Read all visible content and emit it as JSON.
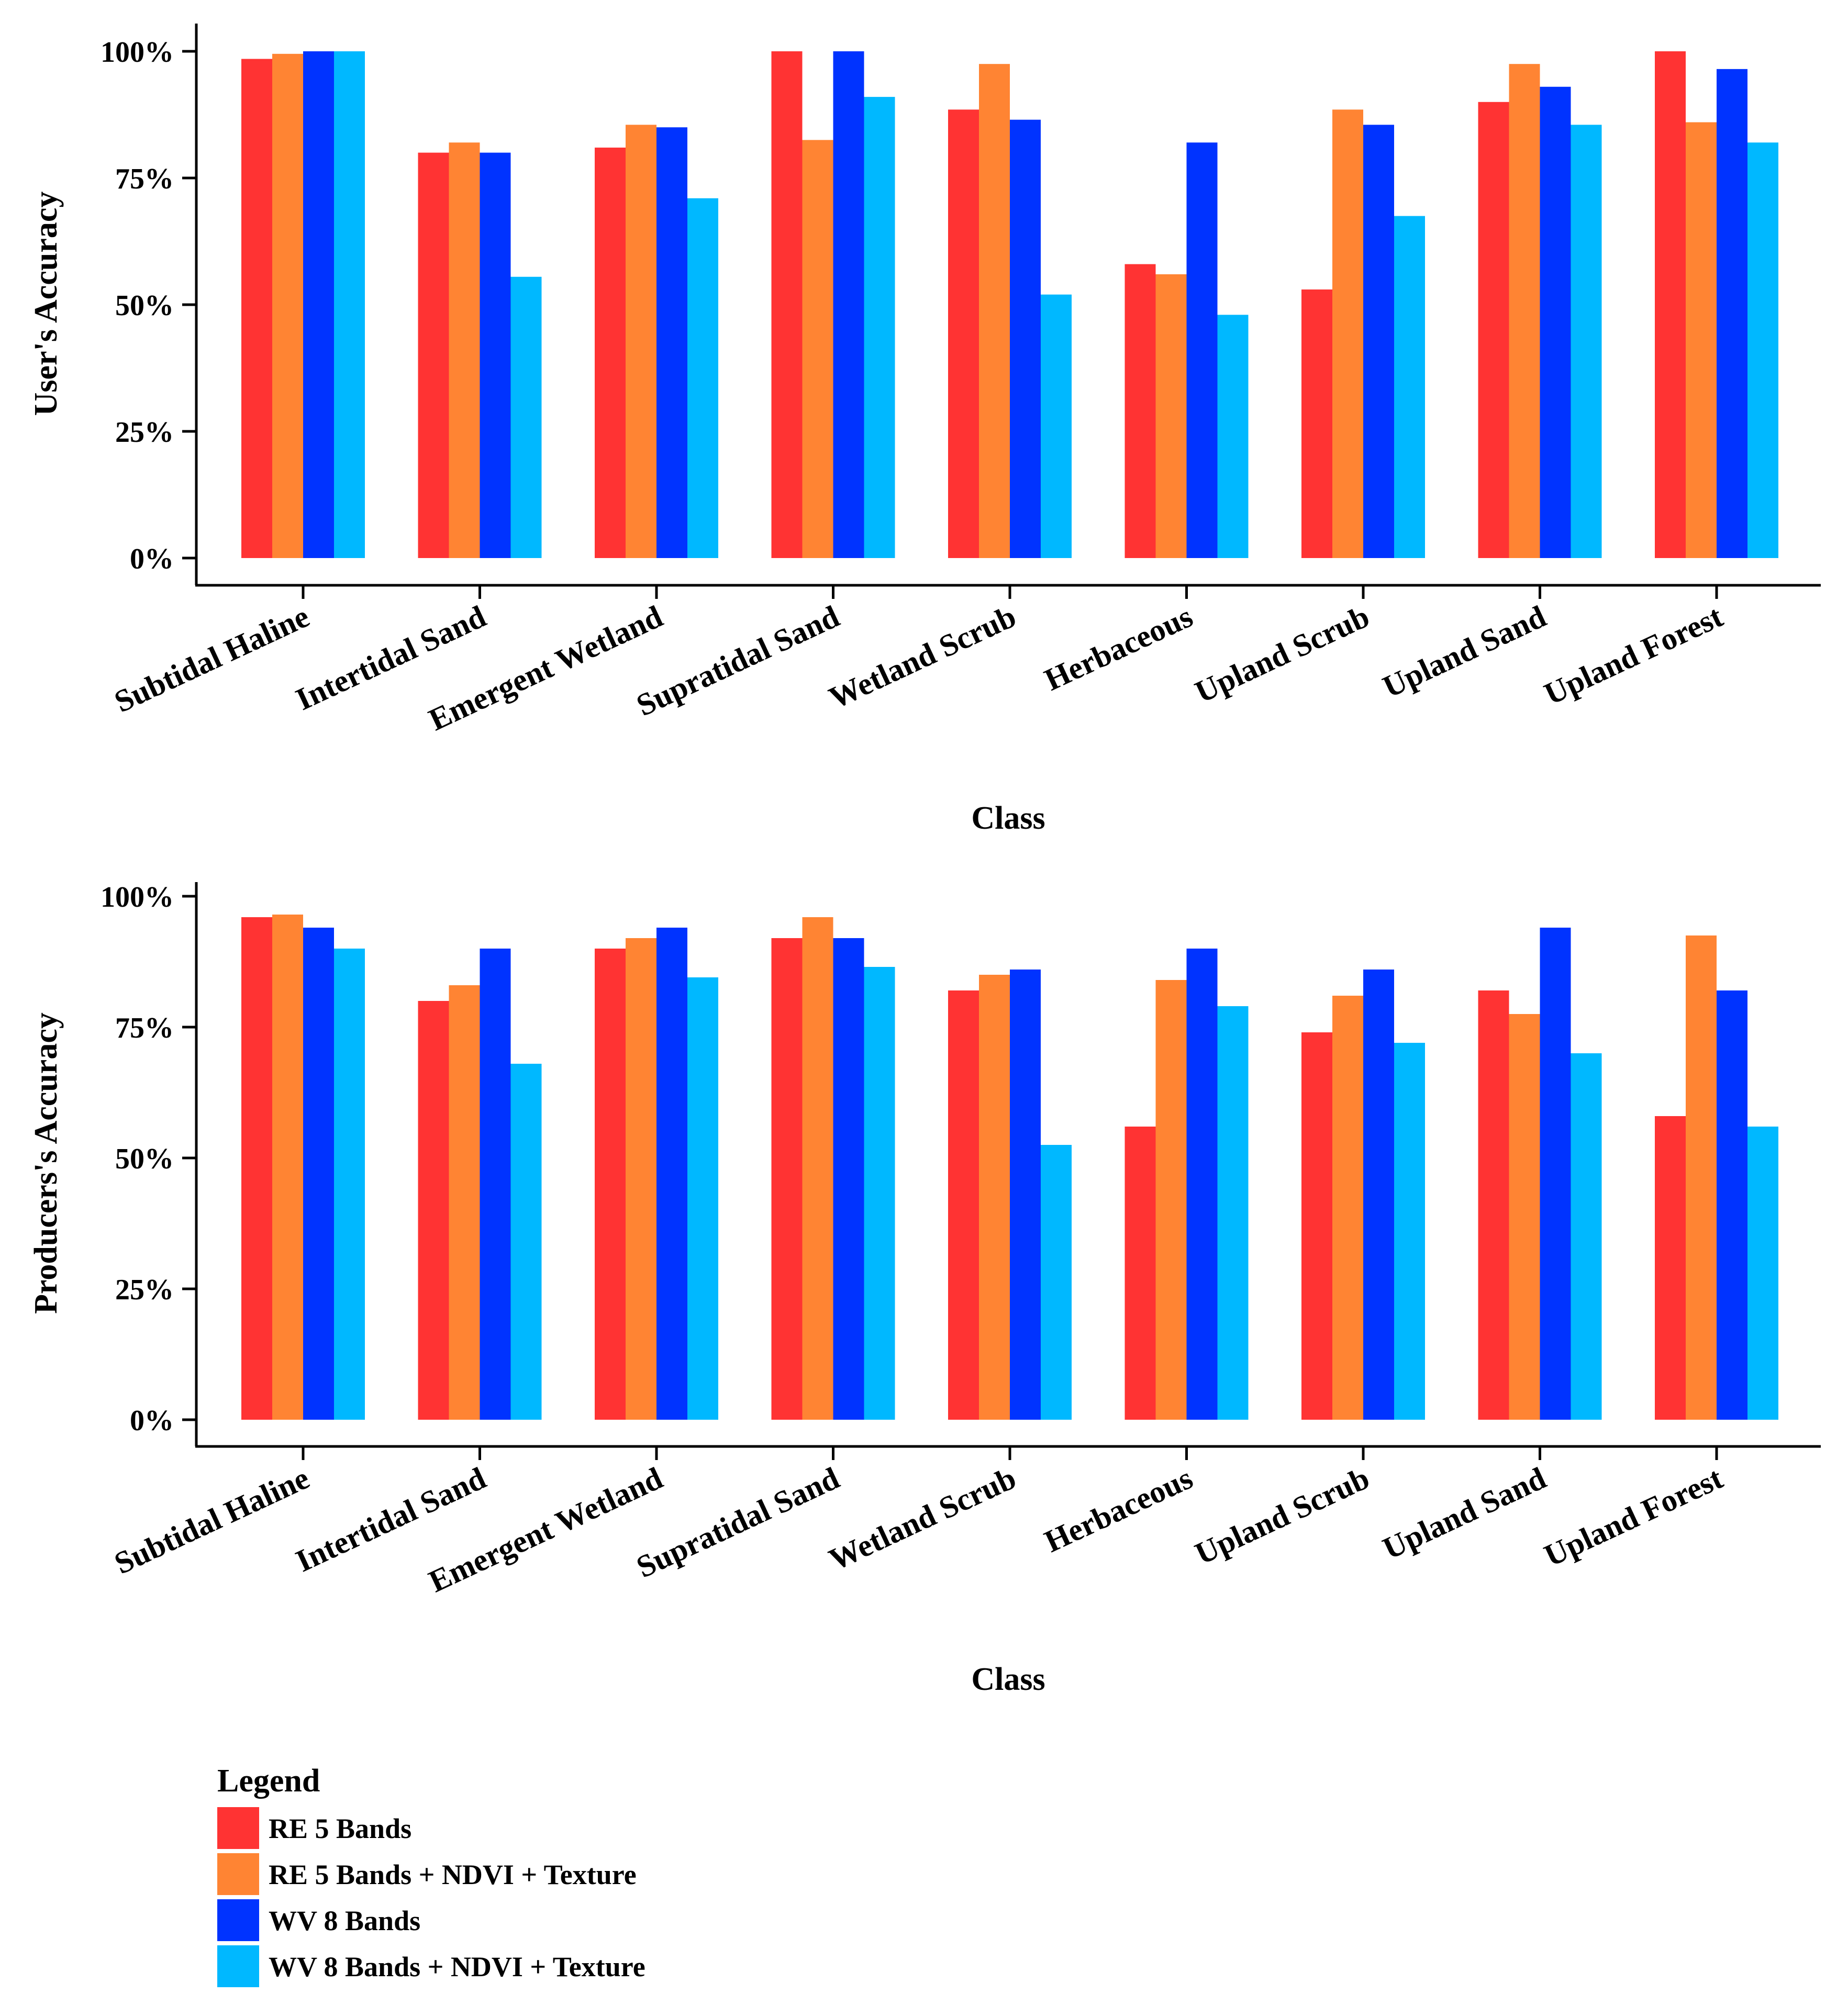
{
  "colors": [
    "#ff3333",
    "#ff8433",
    "#0033ff",
    "#00b8ff"
  ],
  "legend": {
    "title": "Legend",
    "items": [
      "RE 5 Bands",
      "RE 5 Bands + NDVI + Texture",
      "WV 8 Bands",
      "WV 8 Bands + NDVI + Texture"
    ]
  },
  "chart_data": [
    {
      "type": "bar",
      "xlabel": "Class",
      "ylabel": "User's Accuracy",
      "ylim": [
        0,
        100
      ],
      "yticks": [
        {
          "value": 0,
          "label": "0%"
        },
        {
          "value": 25,
          "label": "25%"
        },
        {
          "value": 50,
          "label": "50%"
        },
        {
          "value": 75,
          "label": "75%"
        },
        {
          "value": 100,
          "label": "100%"
        }
      ],
      "categories": [
        "Subtidal Haline",
        "Intertidal Sand",
        "Emergent Wetland",
        "Supratidal Sand",
        "Wetland Scrub",
        "Herbaceous",
        "Upland Scrub",
        "Upland Sand",
        "Upland Forest"
      ],
      "series": [
        {
          "name": "RE 5 Bands",
          "values": [
            98.5,
            80.0,
            81.0,
            100.0,
            88.5,
            58.0,
            53.0,
            90.0,
            100.0
          ]
        },
        {
          "name": "RE 5 Bands + NDVI + Texture",
          "values": [
            99.5,
            82.0,
            85.5,
            82.5,
            97.5,
            56.0,
            88.5,
            97.5,
            86.0
          ]
        },
        {
          "name": "WV 8 Bands",
          "values": [
            100.0,
            80.0,
            85.0,
            100.0,
            86.5,
            82.0,
            85.5,
            93.0,
            96.5
          ]
        },
        {
          "name": "WV 8 Bands + NDVI + Texture",
          "values": [
            100.0,
            55.5,
            71.0,
            91.0,
            52.0,
            48.0,
            67.5,
            85.5,
            82.0
          ]
        }
      ]
    },
    {
      "type": "bar",
      "xlabel": "Class",
      "ylabel": "Producers's Accuracy",
      "ylim": [
        0,
        100
      ],
      "yticks": [
        {
          "value": 0,
          "label": "0%"
        },
        {
          "value": 25,
          "label": "25%"
        },
        {
          "value": 50,
          "label": "50%"
        },
        {
          "value": 75,
          "label": "75%"
        },
        {
          "value": 100,
          "label": "100%"
        }
      ],
      "categories": [
        "Subtidal Haline",
        "Intertidal Sand",
        "Emergent Wetland",
        "Supratidal Sand",
        "Wetland Scrub",
        "Herbaceous",
        "Upland Scrub",
        "Upland Sand",
        "Upland Forest"
      ],
      "series": [
        {
          "name": "RE 5 Bands",
          "values": [
            96.0,
            80.0,
            90.0,
            92.0,
            82.0,
            56.0,
            74.0,
            82.0,
            58.0
          ]
        },
        {
          "name": "RE 5 Bands + NDVI + Texture",
          "values": [
            96.5,
            83.0,
            92.0,
            96.0,
            85.0,
            84.0,
            81.0,
            77.5,
            92.5
          ]
        },
        {
          "name": "WV 8 Bands",
          "values": [
            94.0,
            90.0,
            94.0,
            92.0,
            86.0,
            90.0,
            86.0,
            94.0,
            82.0
          ]
        },
        {
          "name": "WV 8 Bands + NDVI + Texture",
          "values": [
            90.0,
            68.0,
            84.5,
            86.5,
            52.5,
            79.0,
            72.0,
            70.0,
            56.0
          ]
        }
      ]
    }
  ]
}
